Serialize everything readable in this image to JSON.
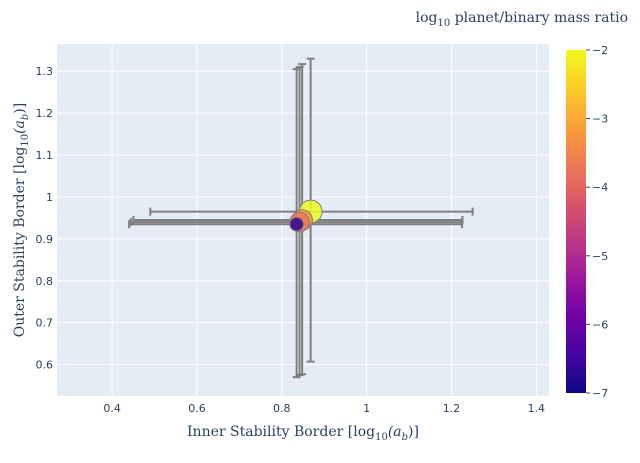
{
  "chart_data": {
    "type": "scatter",
    "title": "",
    "xlabel_prefix": "Inner Stability Border [log",
    "xlabel_sub": "10",
    "xlabel_var": "(a",
    "xlabel_var_sub": "b",
    "xlabel_suffix": ")]",
    "ylabel_prefix": "Outer Stability Border [log",
    "ylabel_sub": "10",
    "ylabel_var": "(a",
    "ylabel_var_sub": "b",
    "ylabel_suffix": ")]",
    "xlim": [
      0.27,
      1.43
    ],
    "ylim": [
      0.525,
      1.365
    ],
    "xticks": [
      0.4,
      0.6,
      0.8,
      1.0,
      1.2,
      1.4
    ],
    "xtick_labels": [
      "0.4",
      "0.6",
      "0.8",
      "1",
      "1.2",
      "1.4"
    ],
    "yticks": [
      0.6,
      0.7,
      0.8,
      0.9,
      1.0,
      1.1,
      1.2,
      1.3
    ],
    "ytick_labels": [
      "0.6",
      "0.7",
      "0.8",
      "0.9",
      "1",
      "1.1",
      "1.2",
      "1.3"
    ],
    "grid": true,
    "points": [
      {
        "x": 0.868,
        "y": 0.965,
        "x_err_minus": 0.378,
        "x_err_plus": 0.382,
        "y_err_minus": 0.358,
        "y_err_plus": 0.365,
        "color_value": -2.0
      },
      {
        "x": 0.848,
        "y": 0.945,
        "x_err_minus": 0.398,
        "x_err_plus": 0.378,
        "y_err_minus": 0.368,
        "y_err_plus": 0.372,
        "color_value": -3.3
      },
      {
        "x": 0.842,
        "y": 0.94,
        "x_err_minus": 0.398,
        "x_err_plus": 0.383,
        "y_err_minus": 0.365,
        "y_err_plus": 0.37,
        "color_value": -3.7
      },
      {
        "x": 0.835,
        "y": 0.935,
        "x_err_minus": 0.395,
        "x_err_plus": 0.39,
        "y_err_minus": 0.365,
        "y_err_plus": 0.37,
        "color_value": -6.7
      }
    ],
    "colorbar": {
      "title_prefix": "log",
      "title_sub": "10",
      "title_suffix": " planet/binary mass ratio",
      "range": [
        -7,
        -2
      ],
      "ticks": [
        -2,
        -3,
        -4,
        -5,
        -6,
        -7
      ],
      "tick_labels": [
        "−2",
        "−3",
        "−4",
        "−5",
        "−6",
        "−7"
      ],
      "colorscale": [
        "#0d0887",
        "#46039f",
        "#7201a8",
        "#9c179e",
        "#bd3786",
        "#d8576b",
        "#ed7953",
        "#fb9f3a",
        "#fdca26",
        "#f0f921"
      ]
    }
  },
  "colors": {
    "plot_bg": "#e5ecf6",
    "grid": "#ffffff",
    "error_bar": "#7f7f7f",
    "text": "#2a3f5f"
  }
}
